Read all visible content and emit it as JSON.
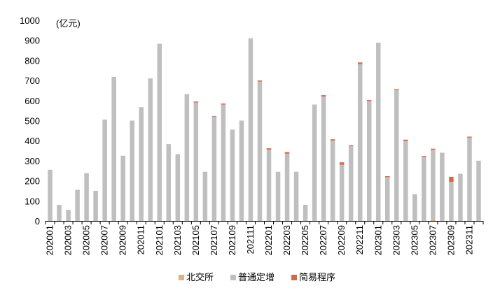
{
  "chart_data": {
    "type": "bar",
    "stacked": true,
    "unit_label": "(亿元)",
    "ylim": [
      0,
      1000
    ],
    "yticks": [
      0,
      100,
      200,
      300,
      400,
      500,
      600,
      700,
      800,
      900,
      1000
    ],
    "grid": false,
    "legend_position": "bottom-center",
    "categories": [
      "202001",
      "202002",
      "202003",
      "202004",
      "202005",
      "202006",
      "202007",
      "202008",
      "202009",
      "202010",
      "202011",
      "202012",
      "202101",
      "202102",
      "202103",
      "202104",
      "202105",
      "202106",
      "202107",
      "202108",
      "202109",
      "202110",
      "202111",
      "202112",
      "202201",
      "202202",
      "202203",
      "202204",
      "202205",
      "202206",
      "202207",
      "202208",
      "202209",
      "202210",
      "202211",
      "202212",
      "202301",
      "202302",
      "202303",
      "202304",
      "202305",
      "202306",
      "202307",
      "202308",
      "202309",
      "202310",
      "202311",
      "202312"
    ],
    "tick_labels": [
      "202001",
      "",
      "202003",
      "",
      "202005",
      "",
      "202007",
      "",
      "202009",
      "",
      "202011",
      "",
      "202101",
      "",
      "202103",
      "",
      "202105",
      "",
      "202107",
      "",
      "202109",
      "",
      "202111",
      "",
      "202201",
      "",
      "202203",
      "",
      "202205",
      "",
      "202207",
      "",
      "202209",
      "",
      "202211",
      "",
      "202301",
      "",
      "202303",
      "",
      "202305",
      "",
      "202307",
      "",
      "202309",
      "",
      "202311",
      ""
    ],
    "series": [
      {
        "name": "北交所",
        "color": "#d9b382",
        "values": [
          0,
          0,
          0,
          0,
          0,
          0,
          0,
          0,
          0,
          0,
          0,
          0,
          0,
          0,
          0,
          0,
          0,
          0,
          0,
          0,
          0,
          0,
          0,
          0,
          0,
          0,
          0,
          0,
          0,
          0,
          0,
          0,
          0,
          0,
          0,
          0,
          0,
          0,
          0,
          0,
          0,
          0,
          10,
          0,
          0,
          0,
          0,
          0
        ]
      },
      {
        "name": "普通定增",
        "color": "#bfbfbf",
        "values": [
          255,
          80,
          55,
          155,
          238,
          150,
          505,
          718,
          325,
          500,
          567,
          710,
          883,
          383,
          333,
          632,
          590,
          245,
          520,
          580,
          455,
          500,
          910,
          695,
          355,
          245,
          335,
          245,
          80,
          580,
          620,
          400,
          280,
          372,
          782,
          598,
          888,
          218,
          652,
          398,
          133,
          320,
          345,
          340,
          195,
          235,
          415,
          300
        ]
      },
      {
        "name": "简易程序",
        "color": "#d6694a",
        "values": [
          0,
          0,
          0,
          0,
          0,
          0,
          0,
          0,
          0,
          0,
          0,
          0,
          0,
          0,
          0,
          0,
          5,
          0,
          3,
          5,
          0,
          0,
          0,
          5,
          7,
          0,
          8,
          0,
          0,
          0,
          7,
          7,
          12,
          5,
          8,
          5,
          0,
          5,
          5,
          7,
          0,
          4,
          5,
          0,
          25,
          0,
          5,
          0
        ]
      }
    ]
  }
}
